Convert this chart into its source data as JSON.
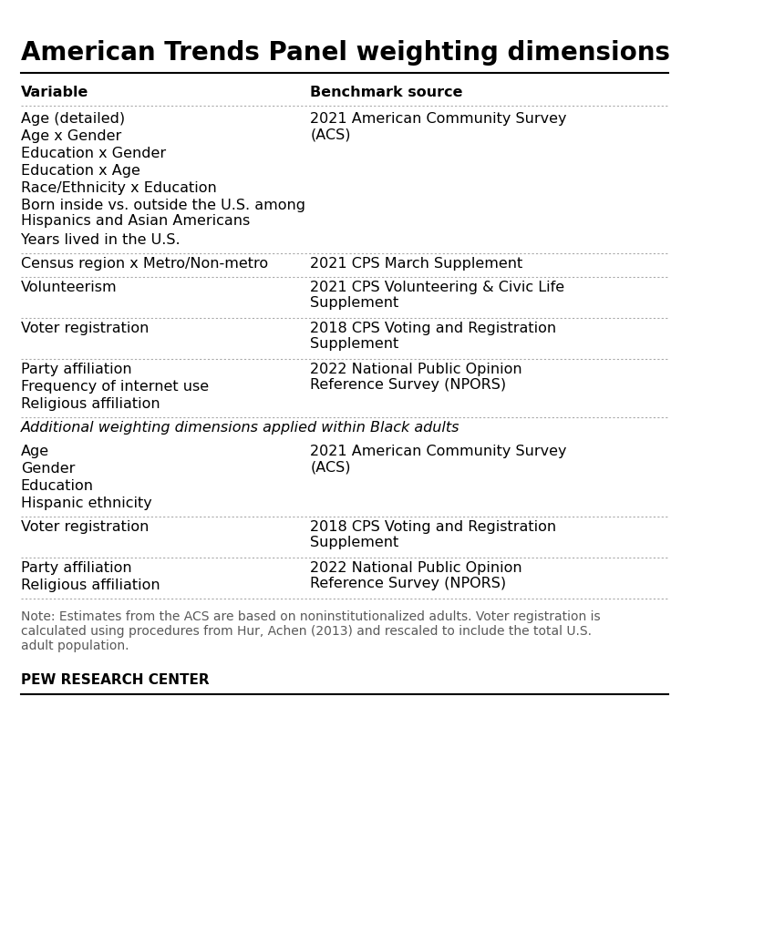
{
  "title": "American Trends Panel weighting dimensions",
  "bg_color": "#ffffff",
  "text_color": "#000000",
  "note_color": "#595959",
  "header_col1": "Variable",
  "header_col2": "Benchmark source",
  "col_split": 0.44,
  "rows": [
    {
      "variables": [
        "Age (detailed)",
        "Age x Gender",
        "Education x Gender",
        "Education x Age",
        "Race/Ethnicity x Education",
        "Born inside vs. outside the U.S. among\nHispanics and Asian Americans",
        "Years lived in the U.S."
      ],
      "benchmark": "2021 American Community Survey\n(ACS)",
      "divider_after": true,
      "section_header": false
    },
    {
      "variables": [
        "Census region x Metro/Non-metro"
      ],
      "benchmark": "2021 CPS March Supplement",
      "divider_after": true,
      "section_header": false
    },
    {
      "variables": [
        "Volunteerism"
      ],
      "benchmark": "2021 CPS Volunteering & Civic Life\nSupplement",
      "divider_after": true,
      "section_header": false
    },
    {
      "variables": [
        "Voter registration"
      ],
      "benchmark": "2018 CPS Voting and Registration\nSupplement",
      "divider_after": true,
      "section_header": false
    },
    {
      "variables": [
        "Party affiliation",
        "Frequency of internet use",
        "Religious affiliation"
      ],
      "benchmark": "2022 National Public Opinion\nReference Survey (NPORS)",
      "divider_after": true,
      "section_header": false
    },
    {
      "variables": [
        "Additional weighting dimensions applied within Black adults"
      ],
      "benchmark": "",
      "italic": true,
      "divider_after": false,
      "section_header": true
    },
    {
      "variables": [
        "Age",
        "Gender",
        "Education",
        "Hispanic ethnicity"
      ],
      "benchmark": "2021 American Community Survey\n(ACS)",
      "divider_after": true,
      "section_header": false
    },
    {
      "variables": [
        "Voter registration"
      ],
      "benchmark": "2018 CPS Voting and Registration\nSupplement",
      "divider_after": true,
      "section_header": false
    },
    {
      "variables": [
        "Party affiliation",
        "Religious affiliation"
      ],
      "benchmark": "2022 National Public Opinion\nReference Survey (NPORS)",
      "divider_after": true,
      "section_header": false
    }
  ],
  "note": "Note: Estimates from the ACS are based on noninstitutionalized adults. Voter registration is\ncalculated using procedures from Hur, Achen (2013) and rescaled to include the total U.S.\nadult population.",
  "footer": "PEW RESEARCH CENTER",
  "title_fontsize": 20,
  "header_fontsize": 11.5,
  "body_fontsize": 11.5,
  "note_fontsize": 10,
  "footer_fontsize": 11
}
